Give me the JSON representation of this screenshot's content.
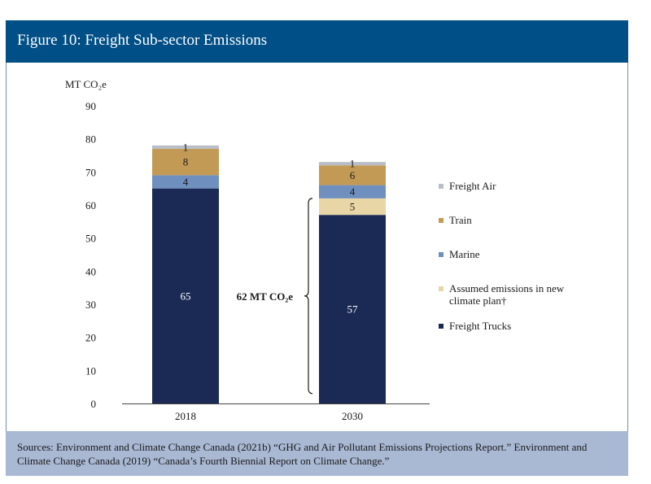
{
  "figure_title": "Figure 10: Freight Sub-sector Emissions",
  "sources_text": "Sources: Environment and Climate Change Canada (2021b) “GHG and Air Pollutant Emissions Projections Report.” Environment and Climate Change Canada (2019) “Canada’s Fourth Biennial Report on Climate Change.”",
  "brace_label": "62 MT CO₂e",
  "colors": {
    "header": "#004f87",
    "sources_bg": "#a9b8d3",
    "freight_trucks": "#1b2a55",
    "assumed": "#e8d6a6",
    "marine": "#6f8fbe",
    "train": "#c29a55",
    "freight_air": "#b8bec8"
  },
  "chart_data": {
    "type": "bar",
    "stacked": true,
    "ylabel": "MT CO₂e",
    "ylim": [
      0,
      90
    ],
    "yticks": [
      0,
      10,
      20,
      30,
      40,
      50,
      60,
      70,
      80,
      90
    ],
    "categories": [
      "2018",
      "2030"
    ],
    "series": [
      {
        "name": "Freight Trucks",
        "values": [
          65,
          57
        ],
        "color": "#1b2a55",
        "label_color": "#ffffff"
      },
      {
        "name": "Assumed emissions in new climate plan†",
        "values": [
          0,
          5
        ],
        "color": "#e8d6a6",
        "label_color": "#1a1a1a"
      },
      {
        "name": "Marine",
        "values": [
          4,
          4
        ],
        "color": "#6f8fbe",
        "label_color": "#1a1a1a"
      },
      {
        "name": "Train",
        "values": [
          8,
          6
        ],
        "color": "#c29a55",
        "label_color": "#1a1a1a"
      },
      {
        "name": "Freight Air",
        "values": [
          1,
          1
        ],
        "color": "#b8bec8",
        "label_color": "#1a1a1a"
      }
    ],
    "legend_order": [
      "Freight Air",
      "Train",
      "Marine",
      "Assumed emissions in new climate plan†",
      "Freight Trucks"
    ],
    "legend_position": "right",
    "grid": false
  }
}
